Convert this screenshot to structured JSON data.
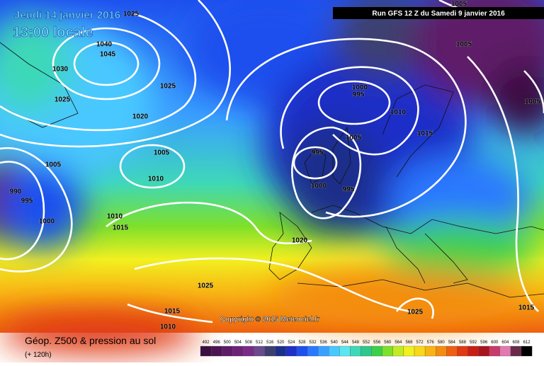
{
  "header": {
    "date": "Jeudi 14 janvier 2016",
    "time": "13:00 locale",
    "run": "Run GFS 12 Z du Samedi 9 janvier 2016",
    "copyright": "Copyright © 2015 Meteociel.fr"
  },
  "footer": {
    "title": "Géop. Z500 & pression au sol",
    "lead": "(+ 120h)"
  },
  "isobars": [
    1025,
    1040,
    1045,
    1030,
    1025,
    1025,
    1020,
    1005,
    1005,
    1000,
    995,
    1010,
    1005,
    1005,
    1015,
    1005,
    995,
    1005,
    1010,
    1000,
    995,
    990,
    995,
    1000,
    1010,
    1015,
    1020,
    1025,
    1015,
    1025,
    1015,
    1010
  ],
  "legend": {
    "levels": [
      492,
      496,
      500,
      504,
      508,
      512,
      516,
      520,
      524,
      528,
      532,
      536,
      540,
      544,
      548,
      552,
      556,
      560,
      564,
      568,
      572,
      576,
      580,
      584,
      588,
      592,
      596,
      600,
      604,
      608,
      612
    ],
    "colors": [
      "#3b0f3f",
      "#4c1552",
      "#5e1c68",
      "#6d2278",
      "#7a2b86",
      "#6a4a8c",
      "#3c3f70",
      "#1c2f8a",
      "#1f2fc8",
      "#1e50ee",
      "#2a78ff",
      "#3aa0ff",
      "#48c8ff",
      "#5ae6f0",
      "#3ed8b8",
      "#2ec88a",
      "#3cd04a",
      "#7ee02a",
      "#c2ec22",
      "#f2f020",
      "#f8d818",
      "#f8b414",
      "#f48c10",
      "#ee6010",
      "#e03a12",
      "#c81e16",
      "#a8141c",
      "#c83a6a",
      "#e07ab0",
      "#6a2a4a",
      "#000000"
    ]
  }
}
